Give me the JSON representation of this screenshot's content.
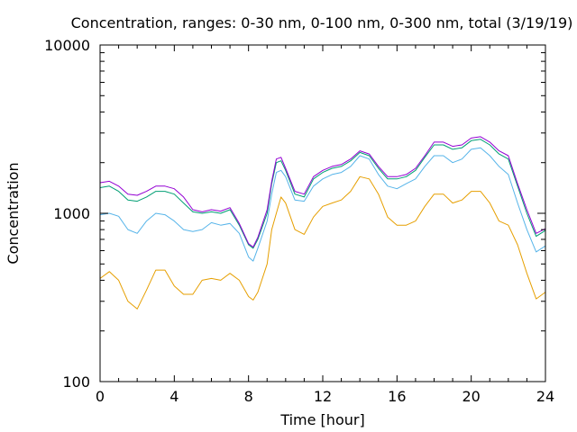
{
  "chart_data": {
    "type": "line",
    "title": "Concentration, ranges: 0-30 nm, 0-100 nm, 0-300 nm, total (3/19/19)",
    "xlabel": "Time [hour]",
    "ylabel": "Concentration",
    "xlim": [
      0,
      24
    ],
    "ylim": [
      100,
      10000
    ],
    "yscale": "log",
    "grid": false,
    "legend": "none",
    "x_ticks": [
      0,
      4,
      8,
      12,
      16,
      20,
      24
    ],
    "x_tick_labels": [
      "0",
      "4",
      "8",
      "12",
      "16",
      "20",
      "24"
    ],
    "y_ticks": [
      100,
      1000,
      10000
    ],
    "y_tick_labels": [
      "100",
      "1000",
      "10000"
    ],
    "x": [
      0,
      0.5,
      1,
      1.5,
      2,
      2.5,
      3,
      3.5,
      4,
      4.5,
      5,
      5.5,
      6,
      6.5,
      7,
      7.5,
      8,
      8.25,
      8.5,
      9,
      9.25,
      9.5,
      9.75,
      10,
      10.5,
      11,
      11.5,
      12,
      12.5,
      13,
      13.5,
      14,
      14.5,
      15,
      15.5,
      16,
      16.5,
      17,
      17.5,
      18,
      18.5,
      19,
      19.5,
      20,
      20.5,
      21,
      21.5,
      22,
      22.5,
      23,
      23.5,
      24
    ],
    "series": [
      {
        "color": "#e69f00",
        "values": [
          410,
          450,
          400,
          300,
          270,
          350,
          460,
          460,
          370,
          330,
          330,
          400,
          410,
          400,
          440,
          400,
          320,
          305,
          340,
          500,
          800,
          1000,
          1250,
          1150,
          800,
          750,
          950,
          1100,
          1150,
          1200,
          1350,
          1650,
          1600,
          1300,
          950,
          850,
          850,
          900,
          1100,
          1300,
          1300,
          1150,
          1200,
          1350,
          1350,
          1150,
          900,
          850,
          650,
          440,
          310,
          340
        ]
      },
      {
        "color": "#56b4e9",
        "values": [
          980,
          1000,
          960,
          800,
          760,
          900,
          1000,
          980,
          900,
          800,
          780,
          800,
          880,
          850,
          870,
          760,
          550,
          520,
          620,
          900,
          1300,
          1750,
          1800,
          1650,
          1200,
          1180,
          1450,
          1600,
          1700,
          1750,
          1900,
          2200,
          2100,
          1700,
          1450,
          1400,
          1500,
          1600,
          1900,
          2200,
          2200,
          2000,
          2100,
          2400,
          2450,
          2200,
          1900,
          1700,
          1150,
          800,
          590,
          640
        ]
      },
      {
        "color": "#009e73",
        "values": [
          1420,
          1450,
          1350,
          1200,
          1180,
          1250,
          1350,
          1350,
          1300,
          1150,
          1020,
          1000,
          1020,
          1000,
          1050,
          850,
          650,
          620,
          700,
          1000,
          1500,
          2000,
          2050,
          1800,
          1300,
          1250,
          1600,
          1750,
          1850,
          1900,
          2050,
          2300,
          2200,
          1850,
          1600,
          1600,
          1650,
          1800,
          2150,
          2550,
          2550,
          2400,
          2450,
          2700,
          2750,
          2550,
          2250,
          2100,
          1450,
          1000,
          730,
          790
        ]
      },
      {
        "color": "#9400d3",
        "values": [
          1520,
          1550,
          1450,
          1300,
          1280,
          1350,
          1450,
          1450,
          1400,
          1250,
          1050,
          1020,
          1050,
          1030,
          1080,
          870,
          660,
          630,
          720,
          1050,
          1550,
          2100,
          2150,
          1850,
          1350,
          1300,
          1650,
          1800,
          1900,
          1950,
          2100,
          2350,
          2250,
          1900,
          1650,
          1650,
          1700,
          1850,
          2200,
          2650,
          2650,
          2500,
          2550,
          2800,
          2850,
          2650,
          2350,
          2200,
          1500,
          1050,
          760,
          810
        ]
      }
    ]
  }
}
